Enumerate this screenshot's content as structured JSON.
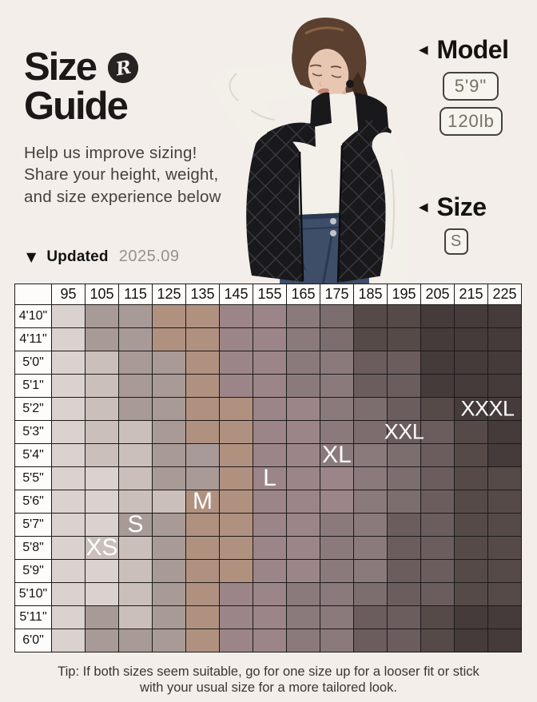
{
  "page": {
    "background": "#f3eeea"
  },
  "header": {
    "title_line1": "Size",
    "title_line2": "Guide",
    "logo_letter": "R",
    "subtitle_lines": [
      "Help us improve sizing!",
      "Share your height, weight,",
      "and size experience below"
    ]
  },
  "model_info": {
    "arrow": "◀",
    "label": "Model",
    "height": "5'9\"",
    "weight": "120lb"
  },
  "size_info": {
    "arrow": "◀",
    "label": "Size",
    "value": "S"
  },
  "updated": {
    "arrow": "▼",
    "label": "Updated",
    "date": "2025.09"
  },
  "tip": {
    "line1": "Tip: If both sizes seem suitable, go for one size up for a looser fit or stick",
    "line2": "with your usual size for a more tailored look."
  },
  "photo": {
    "vest": "#19181b",
    "vest_stitch": "#3c3b44",
    "vest_edge": "#0d0d10",
    "top": "#f3f0ea",
    "top_shadow": "#ded7cc",
    "skin": "#e8c7b2",
    "skin_shadow": "#dcb29a",
    "hair": "#5b4030",
    "hair_dark": "#3f2c1f",
    "hair_shine": "#8a6243",
    "jeans": "#3e4e69",
    "jeans_dark": "#2a3952",
    "button": "#c0c3c9",
    "lips": "#c08575",
    "brow": "#6b4a38"
  },
  "chart_data": {
    "type": "heatmap",
    "title": "Size Guide",
    "weights": [
      "95",
      "105",
      "115",
      "125",
      "135",
      "145",
      "155",
      "165",
      "175",
      "185",
      "195",
      "205",
      "215",
      "225"
    ],
    "heights": [
      "4'10\"",
      "4'11\"",
      "5'0\"",
      "5'1\"",
      "5'2\"",
      "5'3\"",
      "5'4\"",
      "5'5\"",
      "5'6\"",
      "5'7\"",
      "5'8\"",
      "5'9\"",
      "5'10\"",
      "5'11\"",
      "6'0\""
    ],
    "palette": [
      "#d9d2ce",
      "#cabfba",
      "#a89a97",
      "#b09180",
      "#9c8588",
      "#8b7a7c",
      "#7c6e6f",
      "#6b5d5e",
      "#564a49",
      "#453b3a"
    ],
    "cells": [
      [
        0,
        2,
        2,
        3,
        3,
        4,
        4,
        5,
        6,
        8,
        8,
        9,
        9,
        9
      ],
      [
        0,
        2,
        2,
        3,
        3,
        4,
        4,
        5,
        6,
        8,
        8,
        9,
        9,
        9
      ],
      [
        0,
        1,
        2,
        2,
        3,
        4,
        4,
        5,
        5,
        7,
        7,
        9,
        9,
        9
      ],
      [
        0,
        1,
        2,
        2,
        3,
        4,
        4,
        5,
        5,
        7,
        7,
        9,
        9,
        9
      ],
      [
        0,
        1,
        2,
        2,
        3,
        3,
        4,
        4,
        5,
        6,
        7,
        8,
        9,
        9
      ],
      [
        0,
        1,
        1,
        2,
        3,
        3,
        4,
        4,
        5,
        6,
        7,
        7,
        8,
        9
      ],
      [
        0,
        1,
        1,
        2,
        2,
        3,
        4,
        4,
        5,
        5,
        6,
        7,
        8,
        9
      ],
      [
        0,
        0,
        1,
        2,
        2,
        3,
        4,
        4,
        4,
        5,
        6,
        7,
        8,
        8
      ],
      [
        0,
        0,
        1,
        1,
        3,
        3,
        4,
        4,
        4,
        5,
        6,
        7,
        8,
        8
      ],
      [
        0,
        0,
        2,
        2,
        3,
        3,
        4,
        4,
        5,
        5,
        7,
        7,
        8,
        8
      ],
      [
        0,
        1,
        1,
        2,
        3,
        3,
        4,
        4,
        5,
        5,
        7,
        7,
        8,
        8
      ],
      [
        0,
        0,
        1,
        2,
        3,
        3,
        4,
        4,
        5,
        5,
        7,
        7,
        8,
        8
      ],
      [
        0,
        0,
        1,
        2,
        3,
        4,
        4,
        5,
        5,
        6,
        7,
        7,
        8,
        8
      ],
      [
        0,
        2,
        1,
        2,
        3,
        4,
        4,
        5,
        5,
        7,
        7,
        8,
        9,
        9
      ],
      [
        0,
        2,
        2,
        2,
        3,
        4,
        4,
        5,
        5,
        7,
        7,
        8,
        9,
        9
      ]
    ],
    "size_labels": [
      {
        "text": "XS",
        "row": 10,
        "col": 1,
        "span": 1
      },
      {
        "text": "S",
        "row": 9,
        "col": 2,
        "span": 1
      },
      {
        "text": "M",
        "row": 8,
        "col": 4,
        "span": 1
      },
      {
        "text": "L",
        "row": 7,
        "col": 6,
        "span": 1
      },
      {
        "text": "XL",
        "row": 6,
        "col": 8,
        "span": 1
      },
      {
        "text": "XXL",
        "row": 5,
        "col": 10,
        "span": 1
      },
      {
        "text": "XXXL",
        "row": 4,
        "col": 12,
        "span": 2
      }
    ]
  }
}
